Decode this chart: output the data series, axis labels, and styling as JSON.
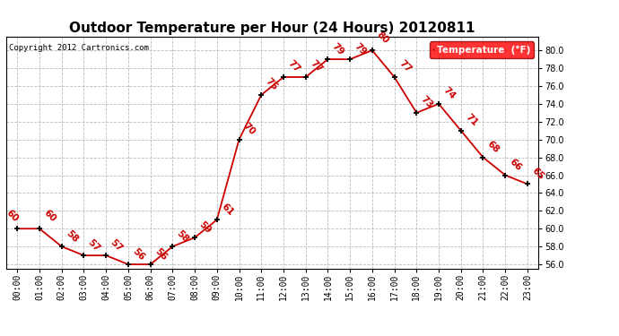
{
  "title": "Outdoor Temperature per Hour (24 Hours) 20120811",
  "copyright": "Copyright 2012 Cartronics.com",
  "legend_label": "Temperature  (°F)",
  "hours": [
    "00:00",
    "01:00",
    "02:00",
    "03:00",
    "04:00",
    "05:00",
    "06:00",
    "07:00",
    "08:00",
    "09:00",
    "10:00",
    "11:00",
    "12:00",
    "13:00",
    "14:00",
    "15:00",
    "16:00",
    "17:00",
    "18:00",
    "19:00",
    "20:00",
    "21:00",
    "22:00",
    "23:00"
  ],
  "temps_24": [
    60,
    60,
    58,
    57,
    57,
    56,
    56,
    58,
    59,
    61,
    70,
    75,
    77,
    77,
    79,
    79,
    80,
    77,
    73,
    74,
    71,
    68,
    66,
    65
  ],
  "line_color": "#cc0000",
  "marker_color": "#000000",
  "bg_color": "#ffffff",
  "grid_color": "#bbbbbb",
  "title_fontsize": 11,
  "ylim_min": 55.5,
  "ylim_max": 81.5,
  "yticks": [
    56.0,
    58.0,
    60.0,
    62.0,
    64.0,
    66.0,
    68.0,
    70.0,
    72.0,
    74.0,
    76.0,
    78.0,
    80.0
  ]
}
